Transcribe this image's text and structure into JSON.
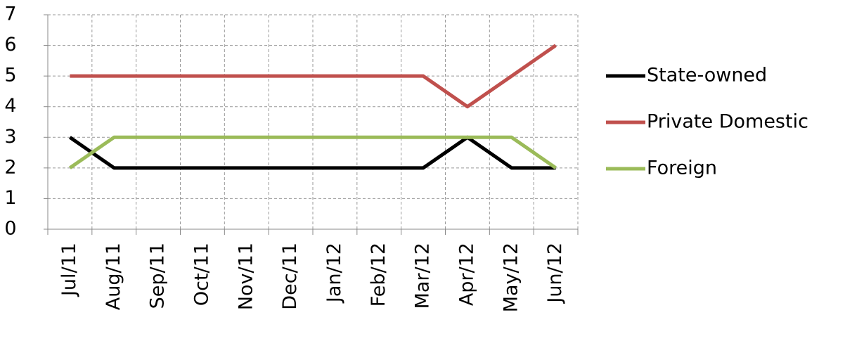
{
  "chart_data": {
    "type": "line",
    "categories": [
      "Jul/11",
      "Aug/11",
      "Sep/11",
      "Oct/11",
      "Nov/11",
      "Dec/11",
      "Jan/12",
      "Feb/12",
      "Mar/12",
      "Apr/12",
      "May/12",
      "Jun/12"
    ],
    "series": [
      {
        "name": "State-owned",
        "color": "#000000",
        "values": [
          3,
          2,
          2,
          2,
          2,
          2,
          2,
          2,
          2,
          3,
          2,
          2
        ]
      },
      {
        "name": "Private Domestic",
        "color": "#c0504d",
        "values": [
          5,
          5,
          5,
          5,
          5,
          5,
          5,
          5,
          5,
          4,
          5,
          6
        ]
      },
      {
        "name": "Foreign",
        "color": "#9bbb59",
        "values": [
          2,
          3,
          3,
          3,
          3,
          3,
          3,
          3,
          3,
          3,
          3,
          2
        ]
      }
    ],
    "ylim": [
      0,
      7
    ],
    "yticks": [
      0,
      1,
      2,
      3,
      4,
      5,
      6,
      7
    ],
    "grid": true,
    "legend": "right"
  }
}
